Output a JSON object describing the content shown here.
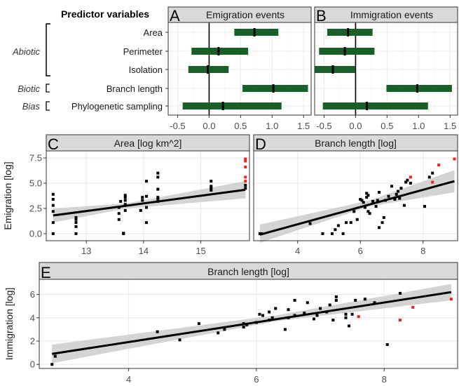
{
  "colors": {
    "interval": "#1a5e2a",
    "point": "#000000",
    "highlight": "#e8241c",
    "strip": "#d9d9d9",
    "band": "#cccccc",
    "grid": "#ebebeb"
  },
  "forest": {
    "heading": "Predictor variables",
    "groups": [
      {
        "label": "Abiotic",
        "rows": [
          0,
          1,
          2
        ]
      },
      {
        "label": "Biotic",
        "rows": [
          3
        ]
      },
      {
        "label": "Bias",
        "rows": [
          4
        ]
      }
    ],
    "predictors": [
      "Area",
      "Perimeter",
      "Isolation",
      "Branch length",
      "Phylogenetic sampling"
    ],
    "x_ticks": [
      "-0.5",
      "0.0",
      "0.5",
      "1.0",
      "1.5"
    ],
    "xlim": [
      -0.65,
      1.62
    ]
  },
  "scatter_ticks": {
    "C_x": [
      "13",
      "14",
      "15"
    ],
    "D_x": [
      "4",
      "6",
      "8"
    ],
    "E_x": [
      "4",
      "6",
      "8"
    ],
    "emig_y": [
      "0.0",
      "2.5",
      "5.0",
      "7.5"
    ],
    "immig_y": [
      "0",
      "2",
      "4",
      "6"
    ]
  },
  "chart_data": [
    {
      "panel": "A",
      "type": "forest",
      "title": "Emigration events",
      "categories": [
        "Area",
        "Perimeter",
        "Isolation",
        "Branch length",
        "Phylogenetic sampling"
      ],
      "estimates": [
        0.72,
        0.15,
        -0.02,
        1.02,
        0.22
      ],
      "lower": [
        0.4,
        -0.28,
        -0.33,
        0.53,
        -0.42
      ],
      "upper": [
        1.1,
        0.62,
        0.31,
        1.57,
        1.15
      ],
      "xlim": [
        -0.65,
        1.62
      ]
    },
    {
      "panel": "B",
      "type": "forest",
      "title": "Immigration events",
      "categories": [
        "Area",
        "Perimeter",
        "Isolation",
        "Branch length",
        "Phylogenetic sampling"
      ],
      "estimates": [
        -0.12,
        -0.17,
        -0.36,
        0.98,
        0.18
      ],
      "lower": [
        -0.45,
        -0.58,
        -0.65,
        0.49,
        -0.52
      ],
      "upper": [
        0.27,
        0.3,
        -0.01,
        1.53,
        1.15
      ],
      "xlim": [
        -0.65,
        1.62
      ]
    },
    {
      "panel": "C",
      "type": "scatter",
      "title": "Area [log km^2]",
      "ylabel": "Emigration [log]",
      "xlim": [
        12.3,
        15.85
      ],
      "ylim": [
        -0.7,
        8.2
      ],
      "points": [
        [
          12.42,
          0.0
        ],
        [
          12.42,
          1.1
        ],
        [
          12.42,
          2.2
        ],
        [
          12.42,
          2.8
        ],
        [
          12.42,
          3.4
        ],
        [
          12.42,
          3.9
        ],
        [
          12.82,
          0.0
        ],
        [
          12.82,
          0.7
        ],
        [
          12.82,
          1.1
        ],
        [
          12.82,
          1.4
        ],
        [
          12.82,
          1.6
        ],
        [
          13.57,
          1.4
        ],
        [
          13.57,
          2.0
        ],
        [
          13.57,
          2.6
        ],
        [
          13.6,
          3.2
        ],
        [
          13.65,
          0.0
        ],
        [
          13.65,
          0.05
        ],
        [
          13.68,
          2.3
        ],
        [
          13.68,
          2.9
        ],
        [
          13.68,
          3.3
        ],
        [
          13.68,
          3.6
        ],
        [
          13.68,
          3.8
        ],
        [
          13.95,
          2.3
        ],
        [
          13.98,
          3.3
        ],
        [
          13.98,
          3.6
        ],
        [
          14.05,
          1.1
        ],
        [
          14.05,
          2.6
        ],
        [
          14.05,
          3.7
        ],
        [
          14.05,
          5.2
        ],
        [
          14.25,
          3.2
        ],
        [
          14.25,
          3.4
        ],
        [
          14.25,
          3.6
        ],
        [
          14.25,
          4.4
        ],
        [
          14.25,
          5.6
        ],
        [
          14.25,
          6.0
        ],
        [
          15.18,
          4.3
        ],
        [
          15.18,
          4.5
        ],
        [
          15.18,
          4.7
        ],
        [
          15.18,
          5.2
        ],
        [
          15.78,
          4.5
        ],
        [
          15.78,
          4.8
        ]
      ],
      "highlight_points": [
        [
          15.78,
          5.2
        ],
        [
          15.78,
          5.6
        ],
        [
          15.78,
          6.6
        ],
        [
          15.78,
          7.2
        ],
        [
          15.78,
          7.4
        ]
      ],
      "fit": {
        "x": [
          12.42,
          15.78
        ],
        "y": [
          1.8,
          4.35
        ]
      },
      "band": {
        "x": [
          12.42,
          13.7,
          15.78
        ],
        "lower": [
          1.1,
          2.5,
          3.5
        ],
        "upper": [
          2.5,
          3.0,
          5.2
        ]
      }
    },
    {
      "panel": "D",
      "type": "scatter",
      "title": "Branch length [log]",
      "ylabel": "Emigration [log]",
      "xlim": [
        2.6,
        9.1
      ],
      "ylim": [
        -0.7,
        8.2
      ],
      "points": [
        [
          2.8,
          0.0
        ],
        [
          2.85,
          0.0
        ],
        [
          4.4,
          1.0
        ],
        [
          4.8,
          0.0
        ],
        [
          5.1,
          0.0
        ],
        [
          5.2,
          0.4
        ],
        [
          5.3,
          0.8
        ],
        [
          5.45,
          0.0
        ],
        [
          5.55,
          1.1
        ],
        [
          5.7,
          1.1
        ],
        [
          5.8,
          2.2
        ],
        [
          5.9,
          1.4
        ],
        [
          6.0,
          3.4
        ],
        [
          6.05,
          3.3
        ],
        [
          6.1,
          3.1
        ],
        [
          6.15,
          2.6
        ],
        [
          6.2,
          4.0
        ],
        [
          6.2,
          3.6
        ],
        [
          6.25,
          3.8
        ],
        [
          6.25,
          2.2
        ],
        [
          6.3,
          2.0
        ],
        [
          6.4,
          3.2
        ],
        [
          6.5,
          2.7
        ],
        [
          6.55,
          3.3
        ],
        [
          6.6,
          0.6
        ],
        [
          6.6,
          4.1
        ],
        [
          6.7,
          1.1
        ],
        [
          6.75,
          1.6
        ],
        [
          6.8,
          3.3
        ],
        [
          6.9,
          3.7
        ],
        [
          7.0,
          4.7
        ],
        [
          7.1,
          3.4
        ],
        [
          7.15,
          3.9
        ],
        [
          7.2,
          4.2
        ],
        [
          7.25,
          3.5
        ],
        [
          7.3,
          4.5
        ],
        [
          7.4,
          2.8
        ],
        [
          7.45,
          5.1
        ],
        [
          7.5,
          5.3
        ],
        [
          7.6,
          5.0
        ],
        [
          8.05,
          2.7
        ],
        [
          8.2,
          5.6
        ],
        [
          8.3,
          6.0
        ]
      ],
      "highlight_points": [
        [
          7.6,
          5.6
        ],
        [
          8.3,
          5.1
        ],
        [
          8.5,
          6.8
        ],
        [
          9.0,
          7.4
        ]
      ],
      "fit": {
        "x": [
          2.8,
          9.0
        ],
        "y": [
          -0.1,
          5.2
        ]
      },
      "band": {
        "x": [
          2.8,
          6.3,
          9.0
        ],
        "lower": [
          -0.9,
          2.7,
          4.1
        ],
        "upper": [
          0.9,
          3.3,
          6.3
        ]
      }
    },
    {
      "panel": "E",
      "type": "scatter",
      "title": "Branch length [log]",
      "ylabel": "Immigration [log]",
      "xlim": [
        2.6,
        9.15
      ],
      "ylim": [
        -0.35,
        7.3
      ],
      "points": [
        [
          2.8,
          0.0
        ],
        [
          2.85,
          0.7
        ],
        [
          4.45,
          2.8
        ],
        [
          4.8,
          2.1
        ],
        [
          5.1,
          3.5
        ],
        [
          5.4,
          2.7
        ],
        [
          5.5,
          3.0
        ],
        [
          5.8,
          3.5
        ],
        [
          5.8,
          3.2
        ],
        [
          5.85,
          3.4
        ],
        [
          6.0,
          3.6
        ],
        [
          6.05,
          4.3
        ],
        [
          6.1,
          4.2
        ],
        [
          6.2,
          3.8
        ],
        [
          6.2,
          4.5
        ],
        [
          6.25,
          4.0
        ],
        [
          6.3,
          4.8
        ],
        [
          6.45,
          3.0
        ],
        [
          6.5,
          4.0
        ],
        [
          6.5,
          4.7
        ],
        [
          6.6,
          4.2
        ],
        [
          6.6,
          5.5
        ],
        [
          6.75,
          4.4
        ],
        [
          6.8,
          5.3
        ],
        [
          6.9,
          3.9
        ],
        [
          6.95,
          4.2
        ],
        [
          7.0,
          4.8
        ],
        [
          7.1,
          4.5
        ],
        [
          7.15,
          5.1
        ],
        [
          7.2,
          3.8
        ],
        [
          7.25,
          5.5
        ],
        [
          7.25,
          5.8
        ],
        [
          7.4,
          4.0
        ],
        [
          7.4,
          4.3
        ],
        [
          7.45,
          3.3
        ],
        [
          7.5,
          4.3
        ],
        [
          7.55,
          5.5
        ],
        [
          7.7,
          5.6
        ],
        [
          7.85,
          5.3
        ],
        [
          8.05,
          1.7
        ],
        [
          8.25,
          6.1
        ]
      ],
      "highlight_points": [
        [
          7.6,
          4.1
        ],
        [
          8.25,
          3.8
        ],
        [
          8.45,
          4.9
        ],
        [
          9.05,
          5.6
        ]
      ],
      "fit": {
        "x": [
          2.8,
          9.05
        ],
        "y": [
          0.9,
          6.2
        ]
      },
      "band": {
        "x": [
          2.8,
          6.3,
          9.05
        ],
        "lower": [
          0.1,
          3.7,
          5.5
        ],
        "upper": [
          1.7,
          4.2,
          6.9
        ]
      }
    }
  ]
}
